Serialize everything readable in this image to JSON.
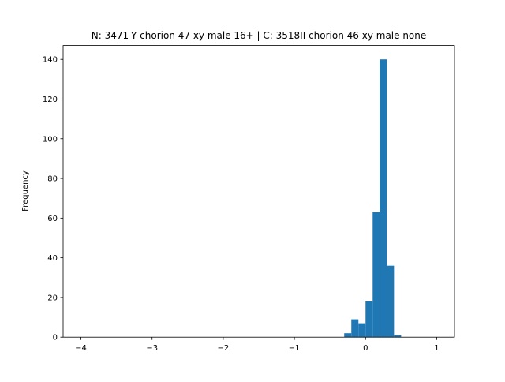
{
  "chart_data": {
    "type": "histogram",
    "title": "N: 3471-Y chorion 47 xy male 16+ | C: 3518II chorion 46 xy male none",
    "ylabel": "Frequency",
    "color": "#1f77b4",
    "bins": [
      -4,
      -3.9,
      -3.8,
      -3.7,
      -3.6,
      -3.5,
      -3.4,
      -3.3,
      -3.2,
      -3.1,
      -3,
      -2.9,
      -2.8,
      -2.7,
      -2.6,
      -2.5,
      -2.4,
      -2.3,
      -2.2,
      -2.1,
      -2,
      -1.9,
      -1.8,
      -1.7,
      -1.6,
      -1.5,
      -1.4,
      -1.3,
      -1.2,
      -1.1,
      -1,
      -0.9,
      -0.8,
      -0.7,
      -0.6,
      -0.5,
      -0.4,
      -0.3,
      -0.2,
      -0.1,
      0,
      0.1,
      0.2,
      0.3,
      0.4,
      0.5,
      0.6,
      0.7,
      0.8,
      0.9,
      1
    ],
    "values": [
      0,
      0,
      0,
      0,
      0,
      0,
      0,
      0,
      0,
      0,
      0,
      0,
      0,
      0,
      0,
      0,
      0,
      0,
      0,
      0,
      0,
      0,
      0,
      0,
      0,
      0,
      0,
      0,
      0,
      0,
      0,
      0,
      0,
      0,
      0,
      0,
      0,
      2,
      9,
      7,
      18,
      63,
      140,
      36,
      1,
      0,
      0,
      0,
      0,
      0
    ],
    "xlim": [
      -4.25,
      1.25
    ],
    "ylim": [
      0,
      147
    ],
    "xticks": [
      {
        "value": -4,
        "label": "−4"
      },
      {
        "value": -3,
        "label": "−3"
      },
      {
        "value": -2,
        "label": "−2"
      },
      {
        "value": -1,
        "label": "−1"
      },
      0,
      1
    ],
    "yticks": [
      0,
      20,
      40,
      60,
      80,
      100,
      120,
      140
    ]
  }
}
